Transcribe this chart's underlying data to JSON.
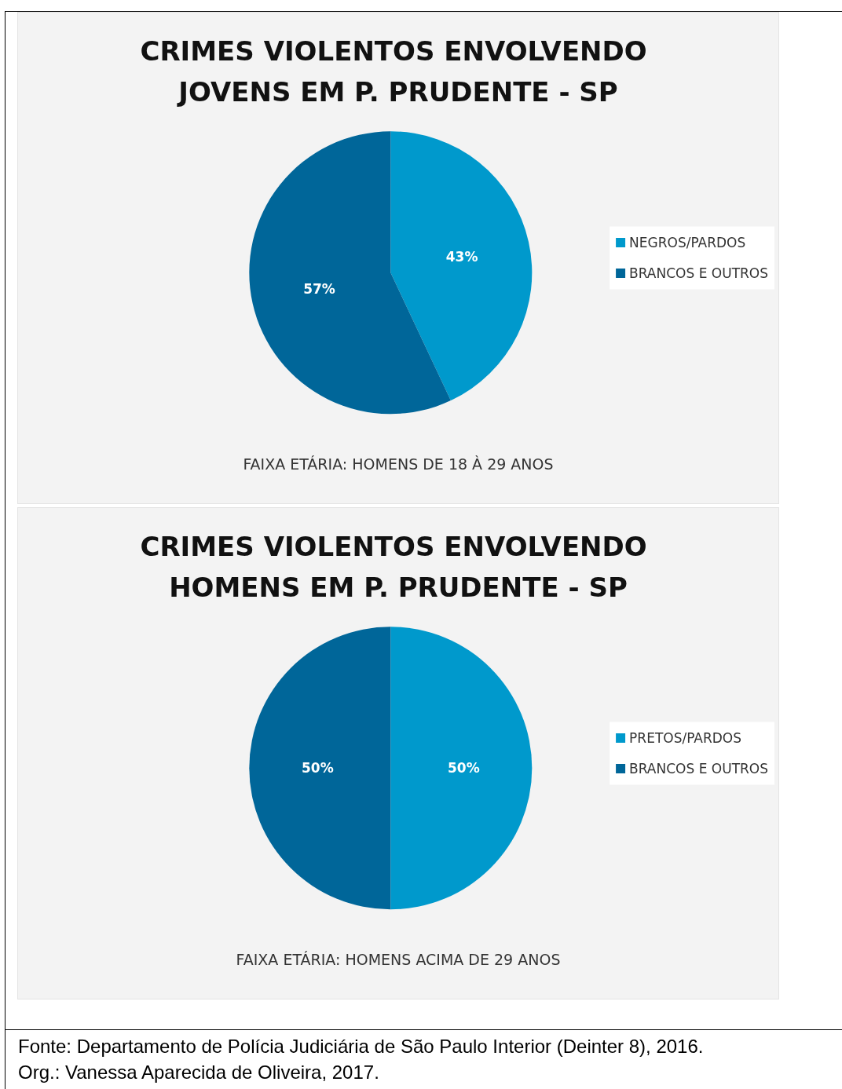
{
  "chart_data": [
    {
      "type": "pie",
      "title": "CRIMES VIOLENTOS ENVOLVENDO JOVENS EM P. PRUDENTE - SP",
      "subtitle": "FAIXA ETÁRIA: HOMENS DE 18 À 29 ANOS",
      "categories": [
        "NEGROS/PARDOS",
        "BRANCOS E OUTROS"
      ],
      "values": [
        43,
        57
      ],
      "colors": [
        "#0099cc",
        "#006699"
      ],
      "value_labels": [
        "43%",
        "57%"
      ],
      "legend": "right"
    },
    {
      "type": "pie",
      "title": "CRIMES VIOLENTOS ENVOLVENDO HOMENS EM P. PRUDENTE - SP",
      "subtitle": "FAIXA ETÁRIA: HOMENS ACIMA DE 29 ANOS",
      "categories": [
        "PRETOS/PARDOS",
        "BRANCOS E OUTROS"
      ],
      "values": [
        50,
        50
      ],
      "colors": [
        "#0099cc",
        "#006699"
      ],
      "value_labels": [
        "50%",
        "50%"
      ],
      "legend": "right",
      "annotations": [
        "Fonte: Departamento de Polícia Judiciária de São Paulo Interior (Deinter 8), 2016.",
        "Org.: Vanessa Aparecida de Oliveira, 2017."
      ]
    }
  ]
}
